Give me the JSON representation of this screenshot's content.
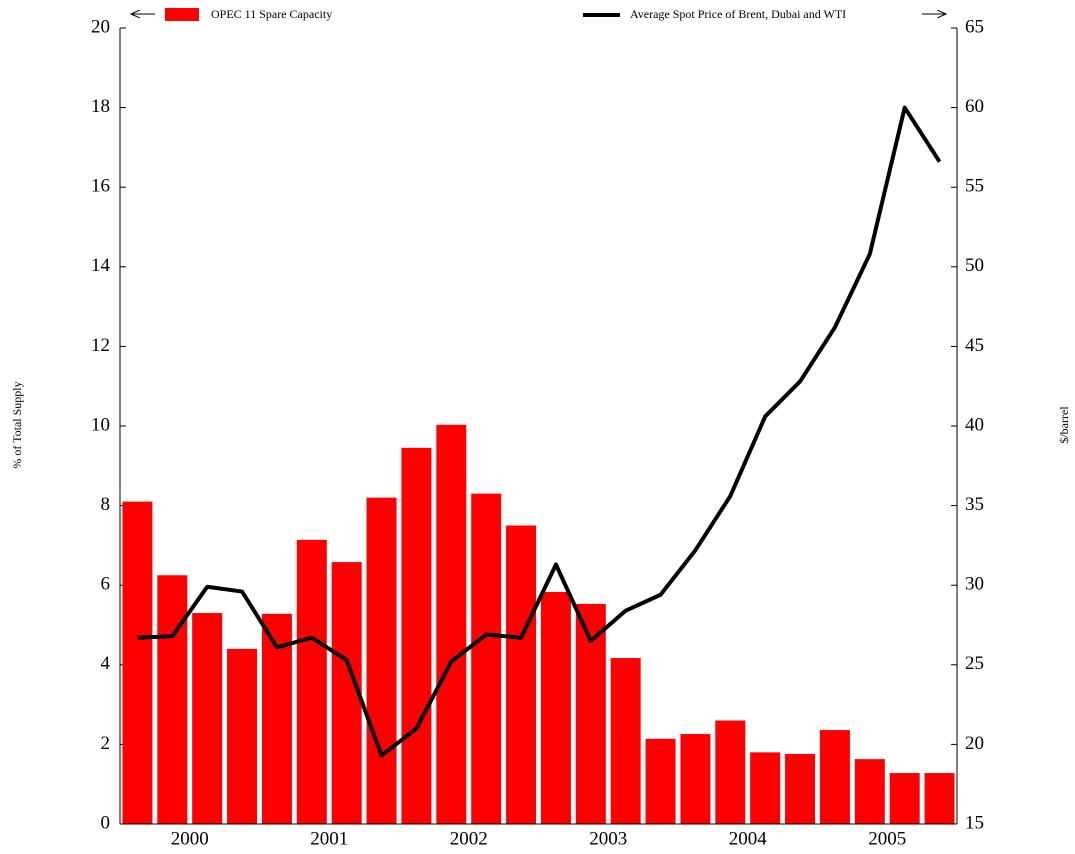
{
  "chart_data": {
    "type": "combo",
    "y_label": "% of Total Supply",
    "y2_label": "$/barrel",
    "categories": [
      null,
      "2000",
      null,
      null,
      null,
      "2001",
      null,
      null,
      null,
      "2002",
      null,
      null,
      null,
      "2003",
      null,
      null,
      null,
      "2004",
      null,
      null,
      null,
      "2005",
      null,
      null
    ],
    "series": [
      {
        "name": "OPEC 11 Spare Capacity",
        "type": "bar",
        "axis": "y",
        "color": "#ff0000",
        "values": [
          8.1,
          6.25,
          5.3,
          4.4,
          5.28,
          7.14,
          6.58,
          8.2,
          9.45,
          10.03,
          8.3,
          7.5,
          5.83,
          5.53,
          4.17,
          2.14,
          2.26,
          2.6,
          1.8,
          1.76,
          2.36,
          1.63,
          1.28,
          1.28
        ]
      },
      {
        "name": "Average Spot Price of Brent, Dubai and WTI",
        "type": "line",
        "axis": "y2",
        "color": "#000000",
        "values": [
          26.7,
          26.8,
          29.9,
          29.6,
          26.1,
          26.7,
          25.3,
          19.3,
          21.0,
          25.2,
          26.9,
          26.7,
          31.3,
          26.5,
          28.4,
          29.4,
          32.2,
          35.6,
          40.6,
          42.8,
          46.2,
          50.8,
          60.0,
          56.6
        ]
      }
    ],
    "ylim": [
      0,
      20
    ],
    "yticks": [
      0,
      2,
      4,
      6,
      8,
      10,
      12,
      14,
      16,
      18,
      20
    ],
    "y2lim": [
      15,
      65
    ],
    "y2ticks": [
      15,
      20,
      25,
      30,
      35,
      40,
      45,
      50,
      55,
      60,
      65
    ]
  }
}
